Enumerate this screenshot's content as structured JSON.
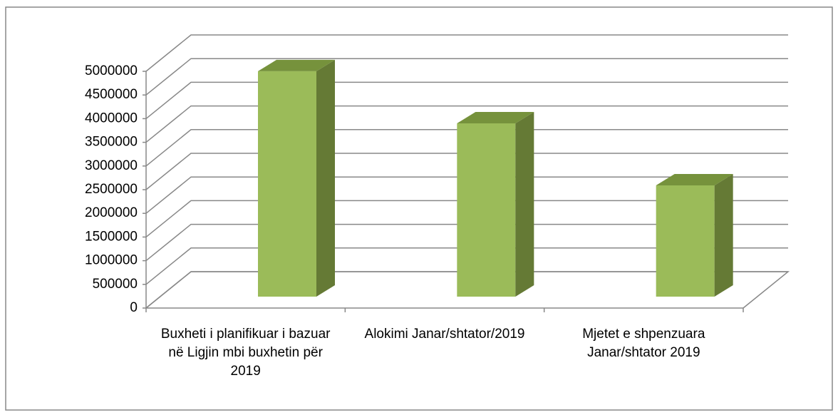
{
  "chart_data": {
    "type": "bar3d",
    "categories": [
      "Buxheti i planifikuar i bazuar në Ligjin mbi buxhetin për 2019",
      "Alokimi Janar/shtator/2019",
      "Mjetet e shpenzuara Janar/shtator 2019"
    ],
    "values": [
      4760000,
      3660000,
      2350000
    ],
    "color": "#9bbb59",
    "ylim": [
      0,
      5000000
    ],
    "yticks": [
      0,
      500000,
      1000000,
      1500000,
      2000000,
      2500000,
      3000000,
      3500000,
      4000000,
      4500000,
      5000000
    ],
    "grid": true
  }
}
